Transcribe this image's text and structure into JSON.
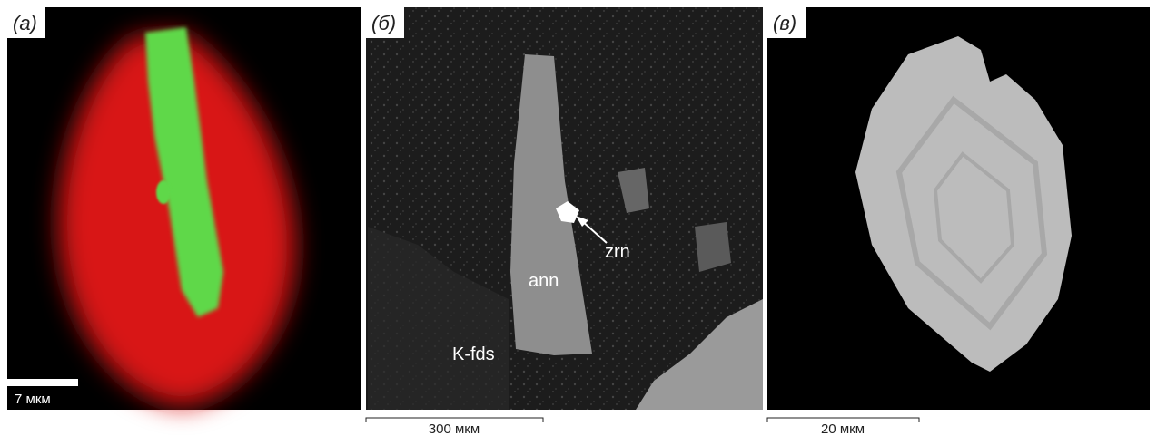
{
  "panels": [
    {
      "label": "(а)",
      "scale_bar": "7 мкм"
    },
    {
      "label": "(б)",
      "annotations": [
        "zrn",
        "ann",
        "K-fds"
      ],
      "scale_bar": "300 мкм"
    },
    {
      "label": "(в)",
      "scale_bar": "20 мкм"
    }
  ]
}
